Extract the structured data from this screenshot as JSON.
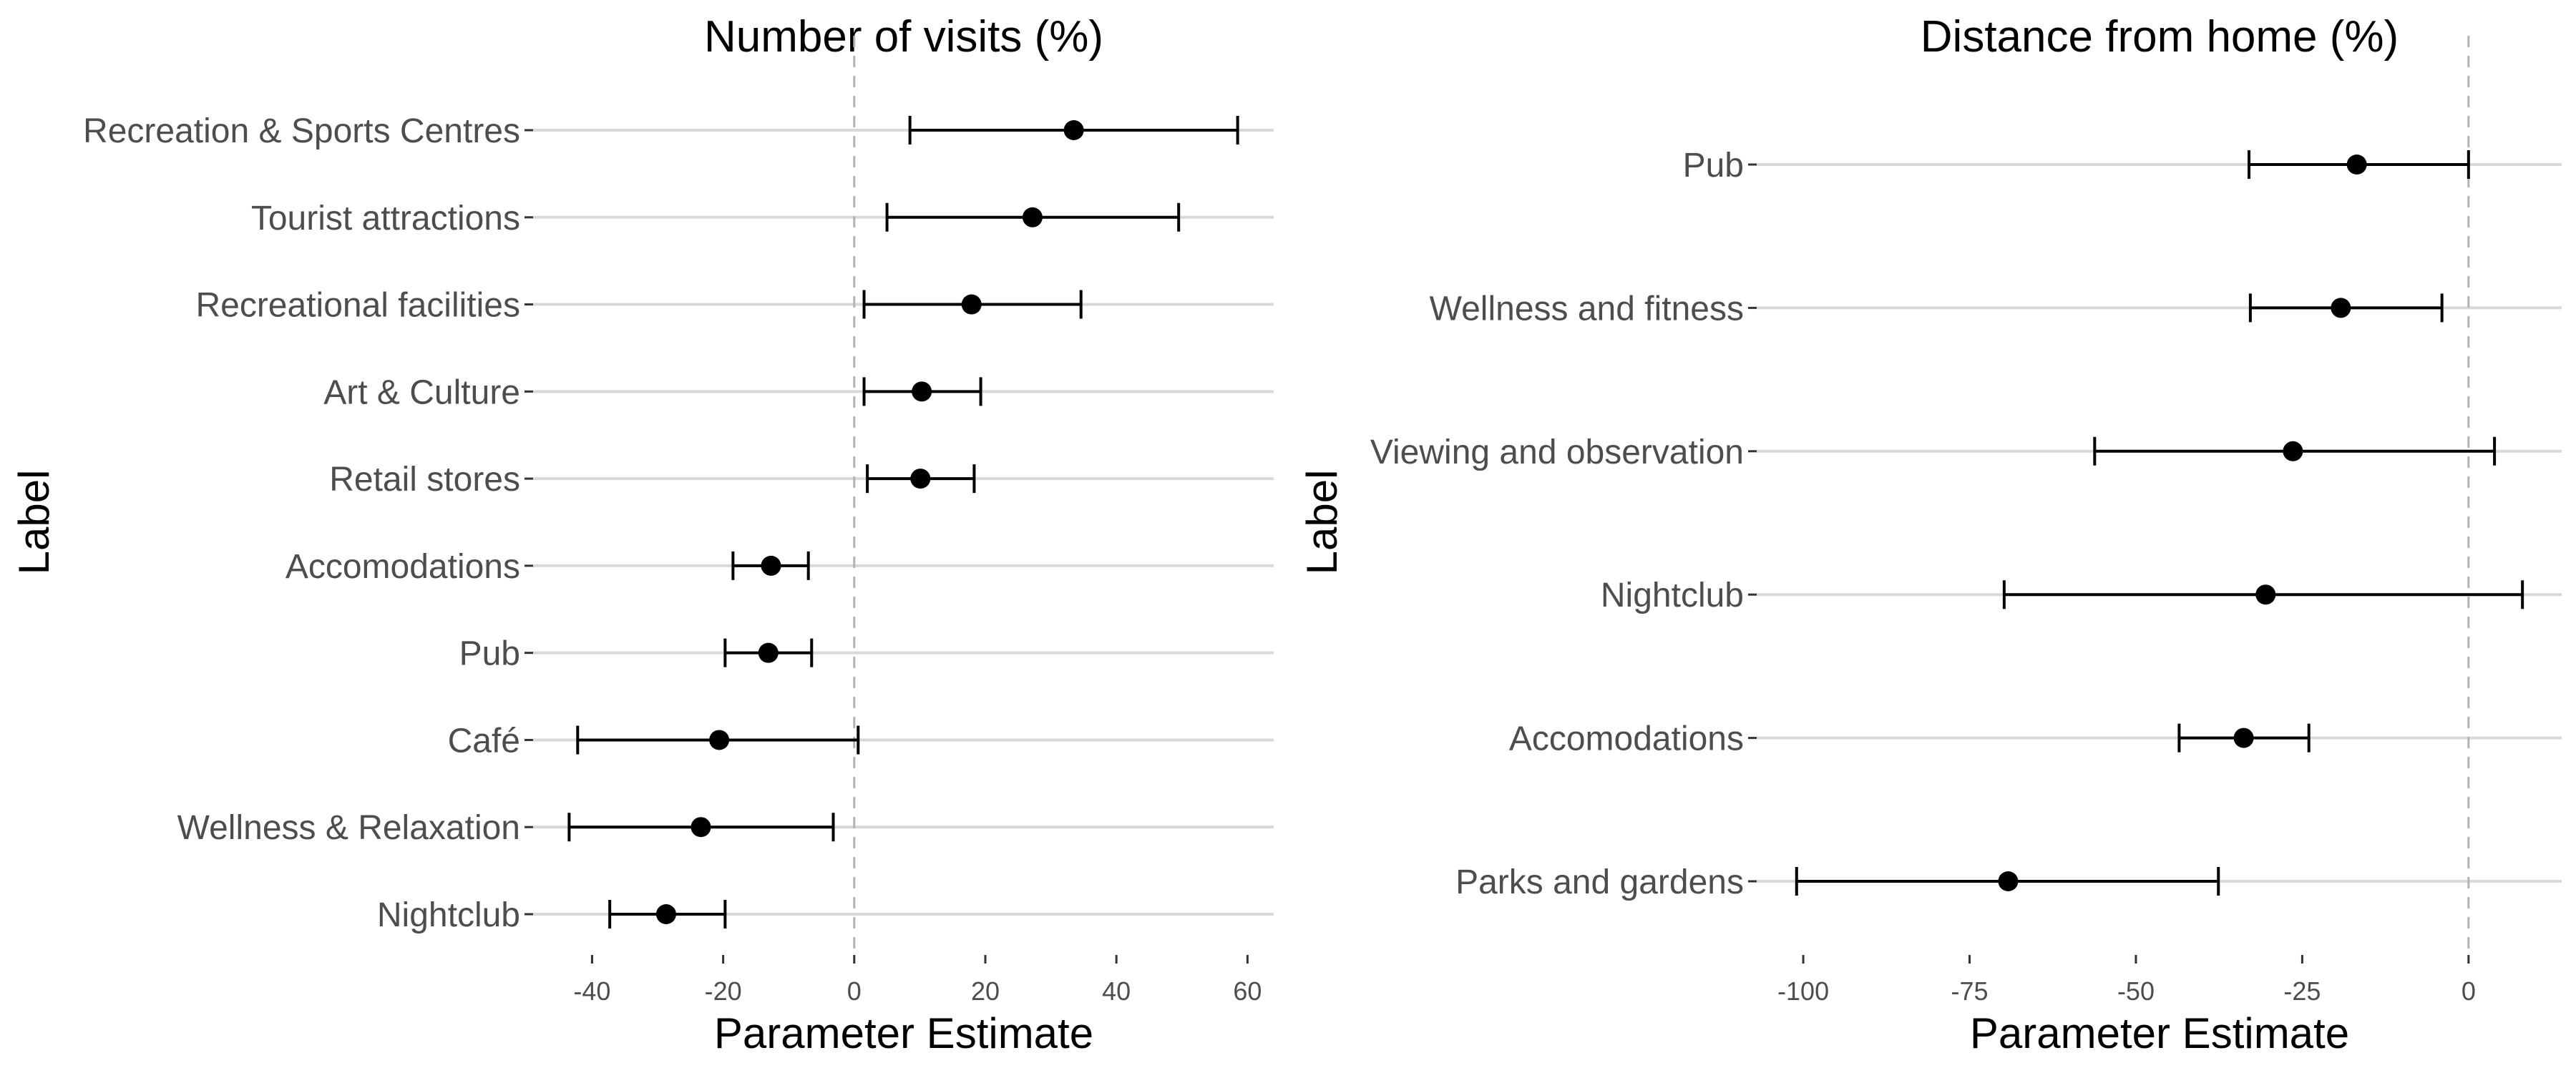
{
  "chart_data": [
    {
      "type": "scatter",
      "title": "Number of visits (%)",
      "xlabel": "Parameter Estimate",
      "ylabel": "Label",
      "xlim": [
        -49,
        64
      ],
      "xticks": [
        -40,
        -20,
        0,
        20,
        40,
        60
      ],
      "xtick_labels": [
        "-40",
        "-20",
        "0",
        "20",
        "40",
        "60"
      ],
      "reference_line": 0,
      "grid": "horizontal",
      "categories": [
        "Recreation & Sports Centres",
        "Tourist attractions",
        "Recreational facilities",
        "Art & Culture",
        "Retail stores",
        "Accomodations",
        "Pub",
        "Café",
        "Wellness & Relaxation",
        "Nightclub"
      ],
      "estimates": [
        33.5,
        27.2,
        17.9,
        10.3,
        10.1,
        -12.7,
        -13.1,
        -20.6,
        -23.4,
        -28.7
      ],
      "lower": [
        8.5,
        5.0,
        1.5,
        1.5,
        2.0,
        -18.5,
        -19.7,
        -42.2,
        -43.5,
        -37.3
      ],
      "upper": [
        58.5,
        49.5,
        34.6,
        19.3,
        18.3,
        -7.0,
        -6.5,
        0.6,
        -3.2,
        -19.7
      ]
    },
    {
      "type": "scatter",
      "title": "Distance from home (%)",
      "xlabel": "Parameter Estimate",
      "ylabel": "Label",
      "xlim": [
        -107,
        14
      ],
      "xticks": [
        -100,
        -75,
        -50,
        -25,
        0
      ],
      "xtick_labels": [
        "-100",
        "-75",
        "-50",
        "-25",
        "0"
      ],
      "reference_line": 0,
      "grid": "horizontal",
      "categories": [
        "Pub",
        "Wellness and fitness",
        "Viewing and observation",
        "Nightclub",
        "Accomodations",
        "Parks and gardens"
      ],
      "estimates": [
        -16.8,
        -19.2,
        -26.4,
        -30.5,
        -33.8,
        -69.2
      ],
      "lower": [
        -33.0,
        -32.8,
        -56.2,
        -69.8,
        -43.5,
        -101.0
      ],
      "upper": [
        0.0,
        -4.0,
        3.9,
        8.1,
        -24.0,
        -37.6
      ]
    }
  ]
}
